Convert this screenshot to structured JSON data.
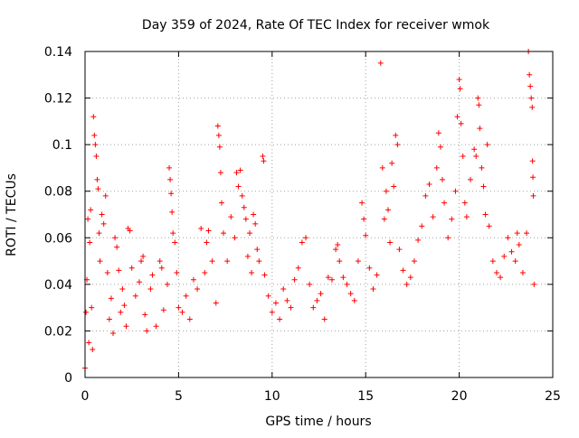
{
  "chart_data": {
    "type": "scatter",
    "title": "Day 359 of 2024, Rate Of TEC Index for receiver wmok",
    "xlabel": "GPS time / hours",
    "ylabel": "ROTI / TECUs",
    "xlim": [
      0,
      25
    ],
    "ylim": [
      0,
      0.14
    ],
    "xticks": [
      "0",
      "5",
      "10",
      "15",
      "20",
      "25"
    ],
    "yticks": [
      "0",
      "0.02",
      "0.04",
      "0.06",
      "0.08",
      "0.1",
      "0.12",
      "0.14"
    ],
    "grid": true,
    "marker": "+",
    "color": "#ff0000",
    "series": [
      {
        "points": [
          [
            0.0,
            0.004
          ],
          [
            0.05,
            0.028
          ],
          [
            0.1,
            0.042
          ],
          [
            0.15,
            0.068
          ],
          [
            0.2,
            0.015
          ],
          [
            0.25,
            0.058
          ],
          [
            0.3,
            0.072
          ],
          [
            0.35,
            0.03
          ],
          [
            0.4,
            0.012
          ],
          [
            0.45,
            0.112
          ],
          [
            0.5,
            0.104
          ],
          [
            0.55,
            0.1
          ],
          [
            0.6,
            0.095
          ],
          [
            0.65,
            0.085
          ],
          [
            0.7,
            0.081
          ],
          [
            0.75,
            0.062
          ],
          [
            0.8,
            0.05
          ],
          [
            0.9,
            0.07
          ],
          [
            1.0,
            0.066
          ],
          [
            1.1,
            0.078
          ],
          [
            1.2,
            0.045
          ],
          [
            1.3,
            0.025
          ],
          [
            1.4,
            0.034
          ],
          [
            1.5,
            0.019
          ],
          [
            1.6,
            0.06
          ],
          [
            1.7,
            0.056
          ],
          [
            1.8,
            0.046
          ],
          [
            1.9,
            0.028
          ],
          [
            2.0,
            0.038
          ],
          [
            2.1,
            0.031
          ],
          [
            2.2,
            0.022
          ],
          [
            2.3,
            0.064
          ],
          [
            2.4,
            0.063
          ],
          [
            2.5,
            0.047
          ],
          [
            2.7,
            0.035
          ],
          [
            2.9,
            0.041
          ],
          [
            3.0,
            0.05
          ],
          [
            3.1,
            0.052
          ],
          [
            3.2,
            0.027
          ],
          [
            3.3,
            0.02
          ],
          [
            3.5,
            0.038
          ],
          [
            3.6,
            0.044
          ],
          [
            3.8,
            0.022
          ],
          [
            4.0,
            0.05
          ],
          [
            4.1,
            0.047
          ],
          [
            4.2,
            0.029
          ],
          [
            4.4,
            0.04
          ],
          [
            4.5,
            0.09
          ],
          [
            4.55,
            0.085
          ],
          [
            4.6,
            0.079
          ],
          [
            4.65,
            0.071
          ],
          [
            4.7,
            0.062
          ],
          [
            4.8,
            0.058
          ],
          [
            4.9,
            0.045
          ],
          [
            5.0,
            0.03
          ],
          [
            5.2,
            0.028
          ],
          [
            5.4,
            0.035
          ],
          [
            5.6,
            0.025
          ],
          [
            5.8,
            0.042
          ],
          [
            6.0,
            0.038
          ],
          [
            6.2,
            0.064
          ],
          [
            6.4,
            0.045
          ],
          [
            6.5,
            0.058
          ],
          [
            6.6,
            0.063
          ],
          [
            6.8,
            0.05
          ],
          [
            7.0,
            0.032
          ],
          [
            7.1,
            0.108
          ],
          [
            7.15,
            0.104
          ],
          [
            7.2,
            0.099
          ],
          [
            7.25,
            0.088
          ],
          [
            7.3,
            0.075
          ],
          [
            7.4,
            0.062
          ],
          [
            7.6,
            0.05
          ],
          [
            7.8,
            0.069
          ],
          [
            8.0,
            0.06
          ],
          [
            8.1,
            0.088
          ],
          [
            8.2,
            0.082
          ],
          [
            8.3,
            0.089
          ],
          [
            8.4,
            0.078
          ],
          [
            8.5,
            0.073
          ],
          [
            8.6,
            0.068
          ],
          [
            8.7,
            0.052
          ],
          [
            8.8,
            0.062
          ],
          [
            8.9,
            0.045
          ],
          [
            9.0,
            0.07
          ],
          [
            9.1,
            0.066
          ],
          [
            9.2,
            0.055
          ],
          [
            9.3,
            0.05
          ],
          [
            9.5,
            0.095
          ],
          [
            9.55,
            0.093
          ],
          [
            9.6,
            0.044
          ],
          [
            9.8,
            0.035
          ],
          [
            10.0,
            0.028
          ],
          [
            10.2,
            0.032
          ],
          [
            10.4,
            0.025
          ],
          [
            10.6,
            0.038
          ],
          [
            10.8,
            0.033
          ],
          [
            11.0,
            0.03
          ],
          [
            11.2,
            0.042
          ],
          [
            11.4,
            0.047
          ],
          [
            11.6,
            0.058
          ],
          [
            11.8,
            0.06
          ],
          [
            12.0,
            0.04
          ],
          [
            12.2,
            0.03
          ],
          [
            12.4,
            0.033
          ],
          [
            12.6,
            0.036
          ],
          [
            12.8,
            0.025
          ],
          [
            13.0,
            0.043
          ],
          [
            13.2,
            0.042
          ],
          [
            13.4,
            0.055
          ],
          [
            13.5,
            0.057
          ],
          [
            13.6,
            0.05
          ],
          [
            13.8,
            0.043
          ],
          [
            14.0,
            0.04
          ],
          [
            14.2,
            0.036
          ],
          [
            14.4,
            0.033
          ],
          [
            14.6,
            0.05
          ],
          [
            14.8,
            0.075
          ],
          [
            14.9,
            0.068
          ],
          [
            15.0,
            0.061
          ],
          [
            15.2,
            0.047
          ],
          [
            15.4,
            0.038
          ],
          [
            15.6,
            0.044
          ],
          [
            15.8,
            0.135
          ],
          [
            15.9,
            0.09
          ],
          [
            16.0,
            0.068
          ],
          [
            16.1,
            0.08
          ],
          [
            16.2,
            0.072
          ],
          [
            16.3,
            0.058
          ],
          [
            16.4,
            0.092
          ],
          [
            16.5,
            0.082
          ],
          [
            16.6,
            0.104
          ],
          [
            16.7,
            0.1
          ],
          [
            16.8,
            0.055
          ],
          [
            17.0,
            0.046
          ],
          [
            17.2,
            0.04
          ],
          [
            17.4,
            0.043
          ],
          [
            17.6,
            0.05
          ],
          [
            17.8,
            0.059
          ],
          [
            18.0,
            0.065
          ],
          [
            18.2,
            0.078
          ],
          [
            18.4,
            0.083
          ],
          [
            18.6,
            0.069
          ],
          [
            18.8,
            0.09
          ],
          [
            18.9,
            0.105
          ],
          [
            19.0,
            0.099
          ],
          [
            19.1,
            0.085
          ],
          [
            19.2,
            0.075
          ],
          [
            19.4,
            0.06
          ],
          [
            19.6,
            0.068
          ],
          [
            19.8,
            0.08
          ],
          [
            19.9,
            0.112
          ],
          [
            20.0,
            0.128
          ],
          [
            20.05,
            0.124
          ],
          [
            20.1,
            0.109
          ],
          [
            20.2,
            0.095
          ],
          [
            20.3,
            0.075
          ],
          [
            20.4,
            0.069
          ],
          [
            20.6,
            0.085
          ],
          [
            20.8,
            0.098
          ],
          [
            20.9,
            0.095
          ],
          [
            21.0,
            0.12
          ],
          [
            21.05,
            0.117
          ],
          [
            21.1,
            0.107
          ],
          [
            21.2,
            0.09
          ],
          [
            21.3,
            0.082
          ],
          [
            21.4,
            0.07
          ],
          [
            21.5,
            0.1
          ],
          [
            21.6,
            0.065
          ],
          [
            21.8,
            0.05
          ],
          [
            22.0,
            0.045
          ],
          [
            22.2,
            0.043
          ],
          [
            22.4,
            0.052
          ],
          [
            22.6,
            0.06
          ],
          [
            22.8,
            0.054
          ],
          [
            23.0,
            0.05
          ],
          [
            23.1,
            0.062
          ],
          [
            23.2,
            0.057
          ],
          [
            23.4,
            0.045
          ],
          [
            23.6,
            0.062
          ],
          [
            23.7,
            0.14
          ],
          [
            23.75,
            0.13
          ],
          [
            23.8,
            0.125
          ],
          [
            23.85,
            0.12
          ],
          [
            23.9,
            0.116
          ],
          [
            23.92,
            0.093
          ],
          [
            23.94,
            0.086
          ],
          [
            23.96,
            0.078
          ],
          [
            24.0,
            0.04
          ]
        ]
      }
    ]
  }
}
